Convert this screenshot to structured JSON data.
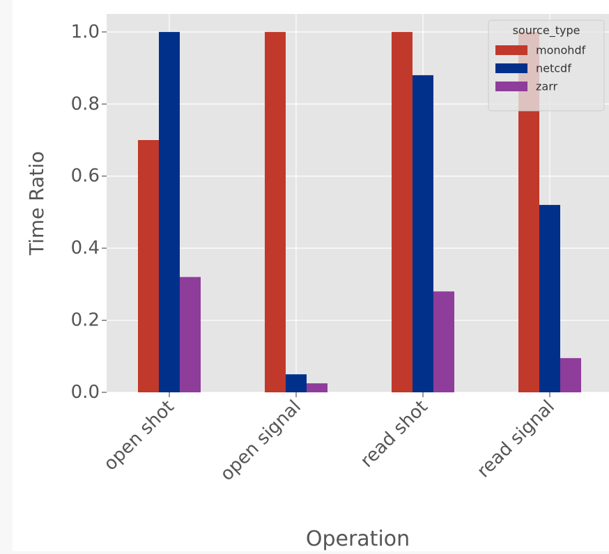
{
  "chart_data": {
    "type": "bar",
    "title": "",
    "xlabel": "Operation",
    "ylabel": "Time Ratio",
    "categories": [
      "open shot",
      "open signal",
      "read shot",
      "read signal"
    ],
    "ylim": [
      0,
      1.05
    ],
    "yticks": [
      0.0,
      0.2,
      0.4,
      0.6,
      0.8,
      1.0
    ],
    "ytick_labels": [
      "0.0",
      "0.2",
      "0.4",
      "0.6",
      "0.8",
      "1.0"
    ],
    "grid": true,
    "legend": {
      "title": "source_type",
      "placement": "top-right"
    },
    "series": [
      {
        "name": "monohdf",
        "color": "#c0392b",
        "values": [
          0.7,
          1.0,
          1.0,
          1.0
        ]
      },
      {
        "name": "netcdf",
        "color": "#00308a",
        "values": [
          1.0,
          0.05,
          0.88,
          0.52
        ]
      },
      {
        "name": "zarr",
        "color": "#8e3d9b",
        "values": [
          0.32,
          0.025,
          0.28,
          0.095
        ]
      }
    ]
  },
  "colors": {
    "plot_background": "#e5e5e5",
    "grid": "#ffffff",
    "text": "#555555"
  }
}
